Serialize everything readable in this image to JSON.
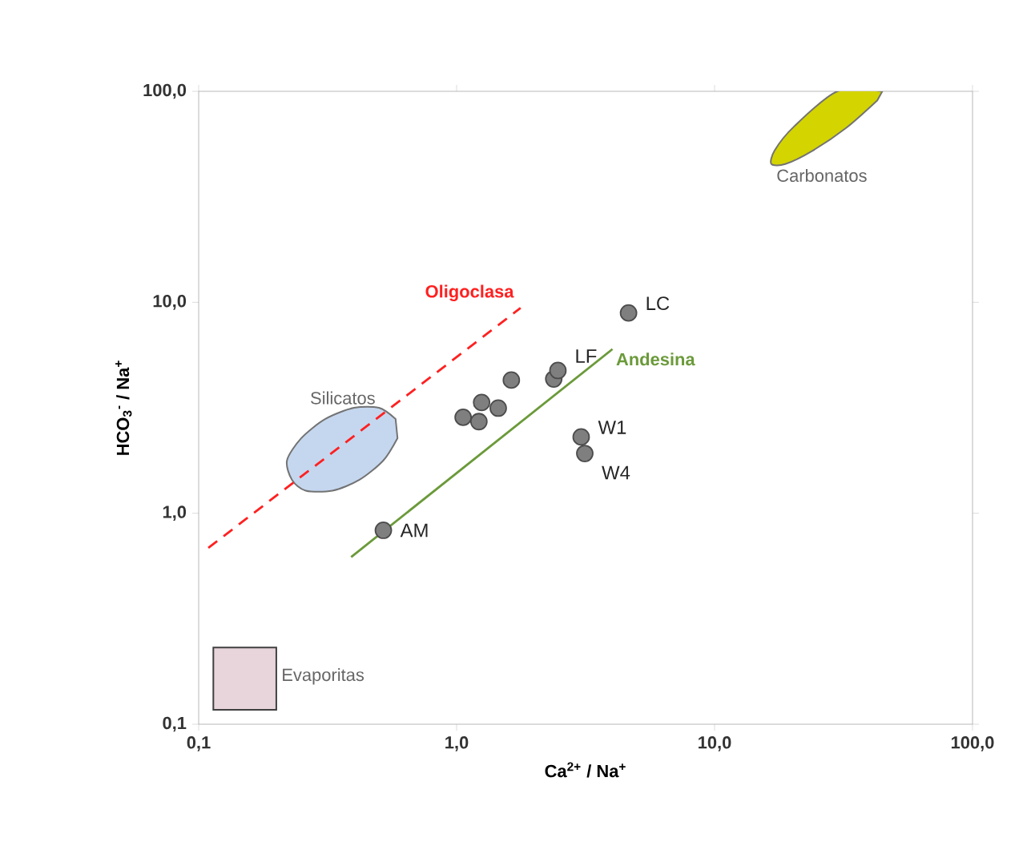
{
  "chart_data": {
    "type": "scatter",
    "xlabel": "Ca$^{2+}$ / Na$^{+}$",
    "ylabel": "HCO$_{3}$$^{-}$ / Na$^{+}$",
    "log": "xy",
    "grid": false,
    "xlim": [
      0.1,
      100
    ],
    "ylim": [
      0.1,
      100
    ],
    "xticks": [
      {
        "value": 0.1,
        "label": "0,1"
      },
      {
        "value": 1,
        "label": "1,0"
      },
      {
        "value": 10,
        "label": "10,0"
      },
      {
        "value": 100,
        "label": "100,0"
      }
    ],
    "yticks": [
      {
        "value": 0.1,
        "label": "0,1"
      },
      {
        "value": 1,
        "label": "1,0"
      },
      {
        "value": 10,
        "label": "10,0"
      },
      {
        "value": 100,
        "label": "100,0"
      }
    ],
    "series": [
      {
        "name": "Silicatos",
        "type": "area",
        "color": "#c5d7ef",
        "x": [
          0.58,
          0.5,
          0.4,
          0.31,
          0.25,
          0.22,
          0.23,
          0.26,
          0.33,
          0.42,
          0.52,
          0.59
        ],
        "values": [
          2.8,
          3.16,
          3.16,
          2.8,
          2.27,
          1.78,
          1.44,
          1.28,
          1.28,
          1.44,
          1.78,
          2.27
        ]
      },
      {
        "name": "Carbonatos",
        "type": "area",
        "color": "#d4d400",
        "x": [
          44.7,
          29.9,
          20.3,
          17.1,
          16.6,
          18.8,
          24.0,
          32.5,
          42.7
        ],
        "values": [
          100,
          100,
          68,
          52.5,
          45.3,
          45.2,
          52.3,
          67.3,
          90.4
        ]
      },
      {
        "name": "Evaporitas",
        "type": "area",
        "color": "#e8d5dc",
        "x": [
          0.114,
          0.2,
          0.2,
          0.114
        ],
        "values": [
          0.231,
          0.231,
          0.117,
          0.117
        ]
      },
      {
        "name": "Oligoclasa",
        "type": "line",
        "color": "#ff2020",
        "line_style": "dashed",
        "marker": "none",
        "x": [
          0.109,
          1.77
        ],
        "values": [
          0.685,
          9.4
        ]
      },
      {
        "name": "Andesina",
        "type": "line",
        "color": "#6b9a3a",
        "line_style": "solid",
        "marker": "none",
        "x": [
          0.39,
          4.02
        ],
        "values": [
          0.62,
          6.0
        ]
      },
      {
        "color": "#7f7f7f",
        "marker": "circle",
        "x": [
          0.52,
          1.06,
          1.22,
          1.25,
          1.45,
          1.63,
          2.38,
          2.47,
          4.64,
          3.04,
          3.14
        ],
        "values": [
          0.83,
          2.85,
          2.72,
          3.35,
          3.15,
          4.28,
          4.33,
          4.75,
          8.9,
          2.3,
          1.92
        ],
        "value_labels": [
          "AM",
          null,
          null,
          null,
          null,
          null,
          null,
          "LF",
          "LC",
          "W1",
          "W4"
        ]
      }
    ]
  }
}
